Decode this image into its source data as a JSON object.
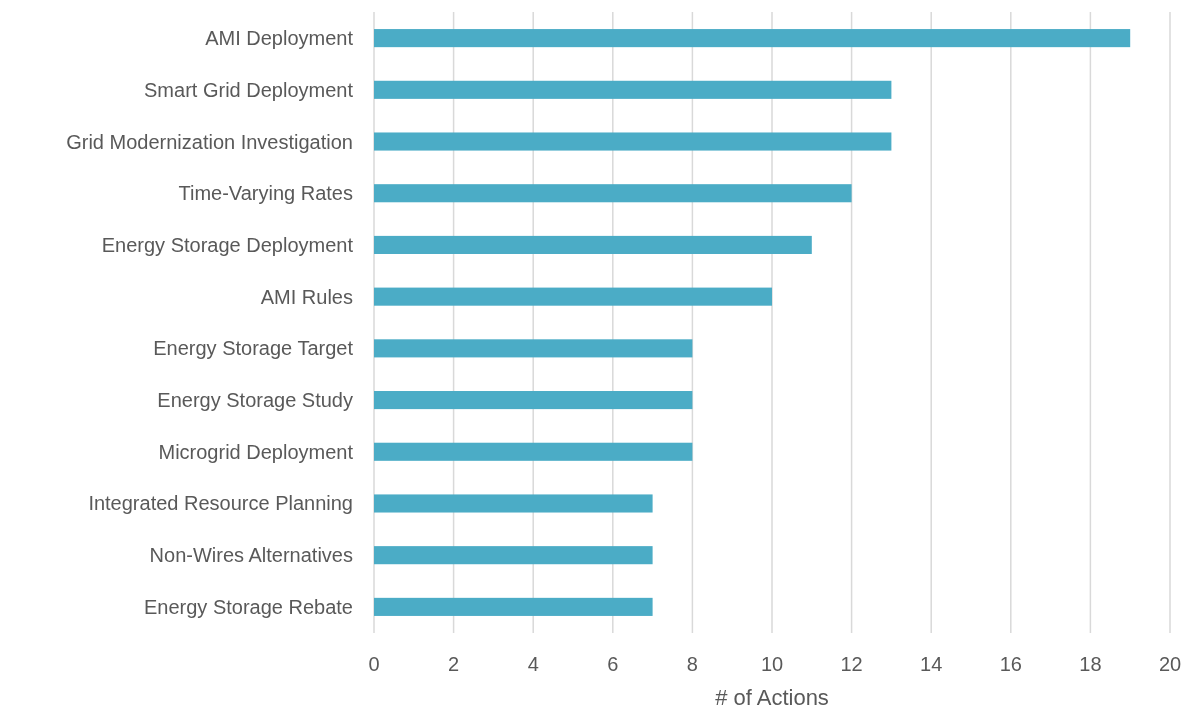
{
  "chart_data": {
    "type": "bar",
    "orientation": "horizontal",
    "xlabel": "# of Actions",
    "categories": [
      "AMI Deployment",
      "Smart Grid Deployment",
      "Grid Modernization Investigation",
      "Time-Varying Rates",
      "Energy Storage Deployment",
      "AMI Rules",
      "Energy Storage Target",
      "Energy Storage Study",
      "Microgrid Deployment",
      "Integrated Resource Planning",
      "Non-Wires Alternatives",
      "Energy Storage Rebate"
    ],
    "values": [
      19,
      13,
      13,
      12,
      11,
      10,
      8,
      8,
      8,
      7,
      7,
      7
    ],
    "color": "#4bacc6",
    "xlim": [
      0,
      20
    ],
    "xticks": [
      0,
      2,
      4,
      6,
      8,
      10,
      12,
      14,
      16,
      18,
      20
    ],
    "grid": "x"
  }
}
